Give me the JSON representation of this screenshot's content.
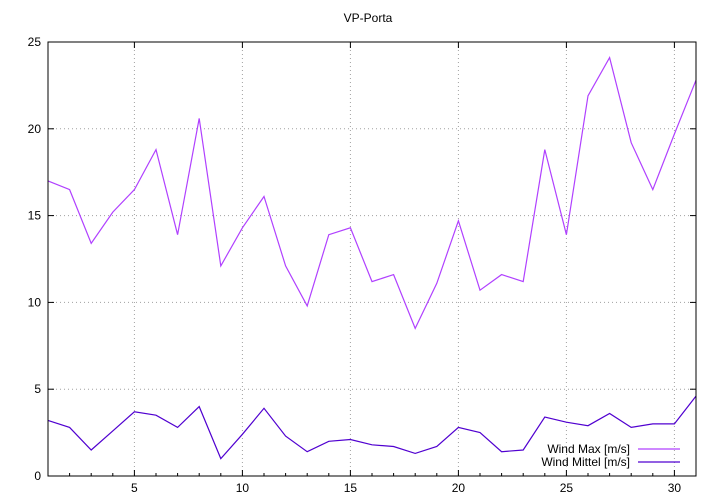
{
  "chart_data": {
    "type": "line",
    "title": "VP-Porta",
    "xlabel": "",
    "ylabel": "",
    "xlim": [
      1,
      31
    ],
    "ylim": [
      0,
      25
    ],
    "x_ticks": [
      5,
      10,
      15,
      20,
      25,
      30
    ],
    "y_ticks": [
      0,
      5,
      10,
      15,
      20,
      25
    ],
    "grid": true,
    "legend": "bottom-right",
    "x": [
      1,
      2,
      3,
      4,
      5,
      6,
      7,
      8,
      9,
      10,
      11,
      12,
      13,
      14,
      15,
      16,
      17,
      18,
      19,
      20,
      21,
      22,
      23,
      24,
      25,
      26,
      27,
      28,
      29,
      30,
      31
    ],
    "series": [
      {
        "name": "Wind Max [m/s]",
        "color": "#b040ff",
        "values": [
          17.0,
          16.5,
          13.4,
          15.2,
          16.5,
          18.8,
          13.9,
          20.6,
          12.1,
          14.3,
          16.1,
          12.1,
          9.8,
          13.9,
          14.3,
          11.2,
          11.6,
          8.5,
          11.1,
          14.7,
          10.7,
          11.6,
          11.2,
          18.8,
          13.9,
          21.9,
          24.1,
          19.2,
          16.5,
          19.7,
          22.8
        ]
      },
      {
        "name": "Wind Mittel [m/s]",
        "color": "#5000d0",
        "values": [
          3.2,
          2.8,
          1.5,
          2.6,
          3.7,
          3.5,
          2.8,
          4.0,
          1.0,
          2.4,
          3.9,
          2.3,
          1.4,
          2.0,
          2.1,
          1.8,
          1.7,
          1.3,
          1.7,
          2.8,
          2.5,
          1.4,
          1.5,
          3.4,
          3.1,
          2.9,
          3.6,
          2.8,
          3.0,
          3.0,
          4.6
        ]
      }
    ]
  }
}
